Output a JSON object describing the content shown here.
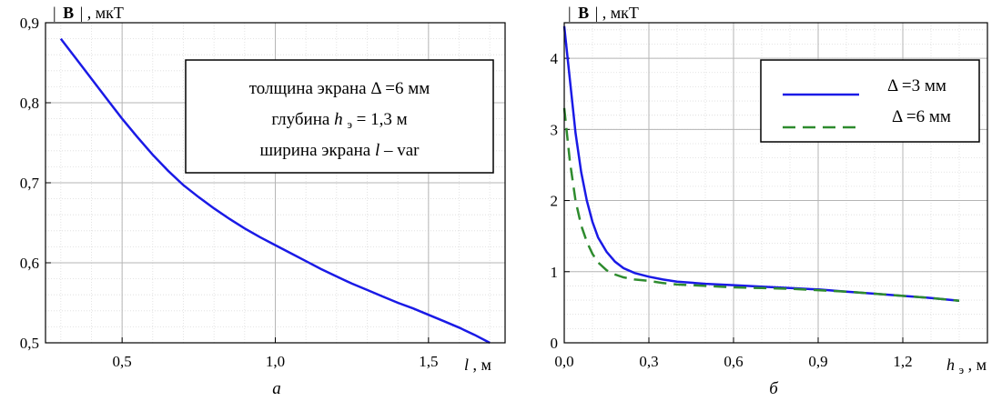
{
  "chart_data": [
    {
      "type": "line",
      "panel_label": "а",
      "ylabel": "| Ḃ |, мкТ",
      "ylabel_parts": {
        "bar_left": "|",
        "symbol": "B",
        "bar_right": "|",
        "unit": ", мкТ"
      },
      "xlabel": "l, м",
      "xlabel_parts": {
        "symbol": "l",
        "unit": ", м"
      },
      "xlim": [
        0.25,
        1.75
      ],
      "ylim": [
        0.5,
        0.9
      ],
      "xticks": [
        0.5,
        1.0,
        1.5
      ],
      "xtick_labels": [
        "0,5",
        "1,0",
        "1,5"
      ],
      "yticks": [
        0.5,
        0.6,
        0.7,
        0.8,
        0.9
      ],
      "ytick_labels": [
        "0,5",
        "0,6",
        "0,7",
        "0,8",
        "0,9"
      ],
      "minor_grid": true,
      "color": "#1a1ae6",
      "annotation": {
        "line1": "толщина экрана Δ =6 мм",
        "line2": {
          "prefix": "глубина ",
          "symbol": "h",
          "sub": "э",
          "rest": "= 1,3 м"
        },
        "line3": {
          "prefix": "ширина экрана ",
          "symbol": "l",
          "rest": " – var"
        }
      },
      "x": [
        0.3,
        0.35,
        0.4,
        0.45,
        0.5,
        0.55,
        0.6,
        0.65,
        0.7,
        0.75,
        0.8,
        0.85,
        0.9,
        0.95,
        1.0,
        1.05,
        1.1,
        1.15,
        1.2,
        1.25,
        1.3,
        1.35,
        1.4,
        1.45,
        1.5,
        1.55,
        1.6,
        1.65,
        1.7
      ],
      "y": [
        0.88,
        0.855,
        0.83,
        0.805,
        0.78,
        0.757,
        0.735,
        0.715,
        0.697,
        0.682,
        0.668,
        0.655,
        0.643,
        0.632,
        0.622,
        0.612,
        0.602,
        0.592,
        0.583,
        0.574,
        0.566,
        0.558,
        0.55,
        0.543,
        0.535,
        0.527,
        0.519,
        0.51,
        0.5
      ]
    },
    {
      "type": "line",
      "panel_label": "б",
      "ylabel": "| Ḃ |, мкТ",
      "ylabel_parts": {
        "bar_left": "|",
        "symbol": "B",
        "bar_right": "|",
        "unit": ", мкТ"
      },
      "xlabel": "hэ , м",
      "xlabel_parts": {
        "symbol": "h",
        "sub": "э",
        "unit": " , м"
      },
      "xlim": [
        0.0,
        1.5
      ],
      "ylim": [
        0,
        4.5
      ],
      "xticks": [
        0.0,
        0.3,
        0.6,
        0.9,
        1.2
      ],
      "xtick_labels": [
        "0,0",
        "0,3",
        "0,6",
        "0,9",
        "1,2"
      ],
      "yticks": [
        0,
        1,
        2,
        3,
        4
      ],
      "ytick_labels": [
        "0",
        "1",
        "2",
        "3",
        "4"
      ],
      "minor_grid": true,
      "legend_placement": "top-right",
      "x": [
        0.0,
        0.02,
        0.04,
        0.06,
        0.08,
        0.1,
        0.12,
        0.15,
        0.18,
        0.21,
        0.25,
        0.3,
        0.35,
        0.4,
        0.5,
        0.6,
        0.7,
        0.8,
        0.9,
        1.0,
        1.1,
        1.2,
        1.3,
        1.4
      ],
      "series": [
        {
          "name": "Δ =3 мм",
          "style": "solid",
          "color": "#1a1ae6",
          "values": [
            4.45,
            3.7,
            2.95,
            2.4,
            2.0,
            1.7,
            1.48,
            1.28,
            1.14,
            1.05,
            0.98,
            0.93,
            0.89,
            0.86,
            0.83,
            0.81,
            0.79,
            0.77,
            0.75,
            0.72,
            0.69,
            0.66,
            0.63,
            0.59
          ]
        },
        {
          "name": "Δ =6 мм",
          "style": "dashed",
          "color": "#2e8b2e",
          "values": [
            3.3,
            2.55,
            2.0,
            1.65,
            1.42,
            1.25,
            1.13,
            1.02,
            0.96,
            0.92,
            0.89,
            0.87,
            0.84,
            0.82,
            0.8,
            0.78,
            0.77,
            0.76,
            0.74,
            0.72,
            0.69,
            0.66,
            0.63,
            0.59
          ]
        }
      ]
    }
  ]
}
